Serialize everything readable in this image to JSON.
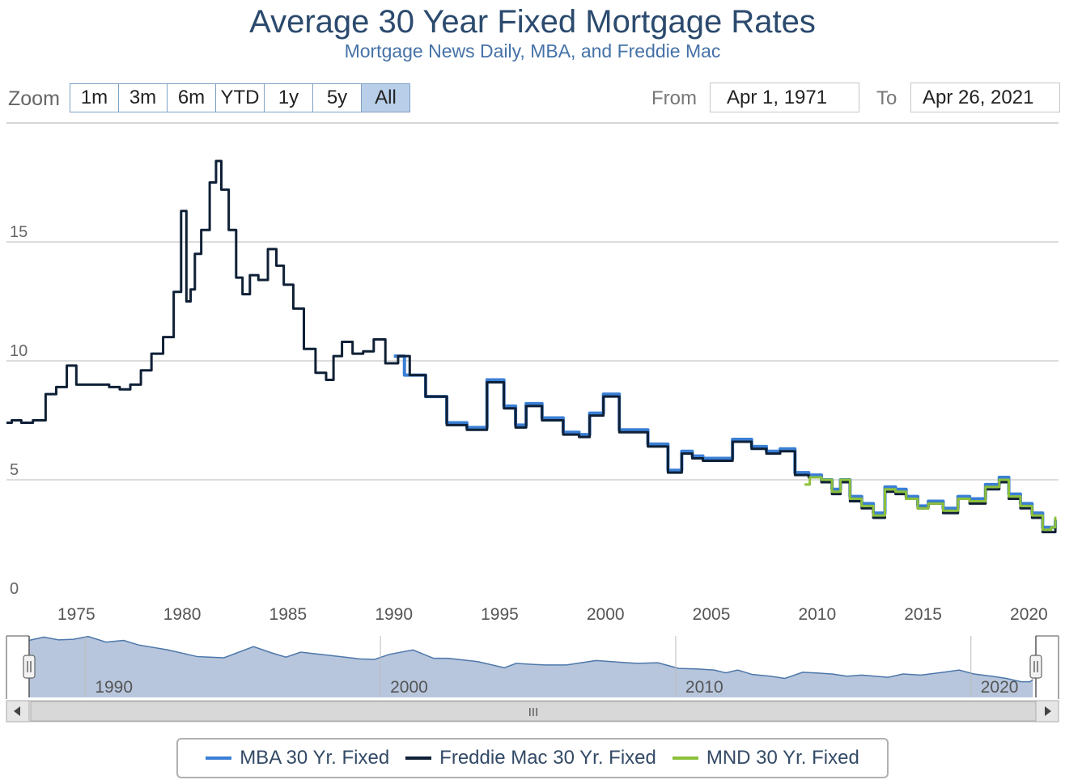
{
  "header": {
    "title": "Average 30 Year Fixed Mortgage Rates",
    "subtitle": "Mortgage News Daily, MBA, and Freddie Mac"
  },
  "range_selector": {
    "zoom_label": "Zoom",
    "buttons": [
      "1m",
      "3m",
      "6m",
      "YTD",
      "1y",
      "5y",
      "All"
    ],
    "active": "All",
    "from_label": "From",
    "from_value": "Apr 1, 1971",
    "to_label": "To",
    "to_value": "Apr 26, 2021"
  },
  "navigator": {
    "tick_labels": [
      "1990",
      "2000",
      "2010",
      "2020"
    ],
    "scroll_handle_glyph": "III"
  },
  "colors": {
    "mba": "#3a7fd5",
    "freddie": "#0f2036",
    "mnd": "#8dc03c",
    "grid": "#c8c8c8",
    "navigator_fill": "#b7c6dc",
    "navigator_line": "#4d77aa"
  },
  "chart_data": {
    "type": "line",
    "title": "Average 30 Year Fixed Mortgage Rates",
    "subtitle": "Mortgage News Daily, MBA, and Freddie Mac",
    "xlim": [
      1971.7,
      2021.4
    ],
    "ylim": [
      0,
      20
    ],
    "y_ticks": [
      0,
      5,
      10,
      15
    ],
    "x_ticks": [
      1975,
      1980,
      1985,
      1990,
      1995,
      2000,
      2005,
      2010,
      2015,
      2020
    ],
    "grid": true,
    "legend_position": "bottom-center",
    "series": [
      {
        "name": "MBA 30 Yr. Fixed",
        "color": "#3a7fd5",
        "x": [
          1990,
          1991,
          1992,
          1993,
          1993.9,
          1994.9,
          1995.5,
          1996,
          1996.5,
          1997.5,
          1998.5,
          1999,
          1999.5,
          2000.3,
          2001,
          2001.5,
          2002.5,
          2003.4,
          2003.8,
          2004.4,
          2004.8,
          2005.5,
          2006.5,
          2007.3,
          2007.9,
          2008.6,
          2009.3,
          2009.9,
          2010.5,
          2010.9,
          2011.3,
          2011.8,
          2012.4,
          2012.9,
          2013.5,
          2013.9,
          2014.5,
          2015,
          2015.5,
          2016.4,
          2016.9,
          2017.5,
          2018.4,
          2018.8,
          2019.3,
          2019.9,
          2020.4,
          2020.9,
          2021.2,
          2021.3
        ],
        "y": [
          10.2,
          9.4,
          8.5,
          7.4,
          7.2,
          9.2,
          8.1,
          7.3,
          8.2,
          7.6,
          7.0,
          6.9,
          7.8,
          8.6,
          7.1,
          7.1,
          6.5,
          5.4,
          6.2,
          6.0,
          5.9,
          5.9,
          6.7,
          6.4,
          6.2,
          6.3,
          5.3,
          5.2,
          5.0,
          4.6,
          5.0,
          4.3,
          4.0,
          3.6,
          4.7,
          4.6,
          4.3,
          3.9,
          4.1,
          3.8,
          4.3,
          4.2,
          4.8,
          5.1,
          4.4,
          4.0,
          3.6,
          3.0,
          3.0,
          3.3
        ]
      },
      {
        "name": "Freddie Mac 30 Yr. Fixed",
        "color": "#0f2036",
        "x": [
          1971.7,
          1972.2,
          1972.6,
          1973.3,
          1973.8,
          1974.3,
          1974.8,
          1975.2,
          1975.6,
          1976.3,
          1976.8,
          1977.3,
          1977.8,
          1978.3,
          1978.8,
          1979.4,
          1979.8,
          1980.1,
          1980.3,
          1980.5,
          1980.7,
          1981.1,
          1981.5,
          1981.7,
          1982.0,
          1982.4,
          1982.7,
          1983.0,
          1983.4,
          1983.8,
          1984.3,
          1984.6,
          1985.0,
          1985.5,
          1986.0,
          1986.6,
          1987.0,
          1987.3,
          1987.8,
          1988.3,
          1988.8,
          1989.3,
          1989.9,
          1990.5,
          1991,
          1992,
          1993,
          1993.9,
          1994.9,
          1995.5,
          1996,
          1996.5,
          1997.5,
          1998.5,
          1999,
          1999.5,
          2000.3,
          2001,
          2001.5,
          2002.5,
          2003.4,
          2003.8,
          2004.4,
          2004.8,
          2005.5,
          2006.5,
          2007.3,
          2007.9,
          2008.6,
          2009.3,
          2009.9,
          2010.5,
          2010.9,
          2011.3,
          2011.8,
          2012.4,
          2012.9,
          2013.5,
          2013.9,
          2014.5,
          2015,
          2015.5,
          2016.4,
          2016.9,
          2017.5,
          2018.4,
          2018.8,
          2019.3,
          2019.9,
          2020.4,
          2020.9,
          2021.2,
          2021.3
        ],
        "y": [
          7.4,
          7.5,
          7.4,
          7.5,
          8.6,
          8.9,
          9.8,
          9.0,
          9.0,
          9.0,
          8.9,
          8.8,
          9.0,
          9.6,
          10.3,
          11.0,
          12.9,
          16.3,
          12.5,
          13.0,
          14.5,
          15.5,
          17.5,
          18.4,
          17.2,
          15.5,
          13.5,
          12.8,
          13.6,
          13.4,
          14.7,
          14.0,
          13.2,
          12.2,
          10.5,
          9.5,
          9.2,
          10.2,
          10.8,
          10.3,
          10.4,
          10.9,
          9.9,
          10.2,
          9.4,
          8.5,
          7.3,
          7.1,
          9.1,
          8.0,
          7.2,
          8.1,
          7.5,
          6.9,
          6.8,
          7.7,
          8.5,
          7.0,
          7.0,
          6.4,
          5.3,
          6.1,
          5.9,
          5.8,
          5.8,
          6.6,
          6.3,
          6.1,
          6.2,
          5.2,
          5.1,
          4.9,
          4.4,
          4.9,
          4.1,
          3.8,
          3.4,
          4.5,
          4.4,
          4.2,
          3.8,
          4.0,
          3.6,
          4.2,
          4.0,
          4.6,
          4.9,
          4.2,
          3.8,
          3.4,
          2.8,
          2.8,
          3.2
        ]
      },
      {
        "name": "MND 30 Yr. Fixed",
        "color": "#8dc03c",
        "x": [
          2009.4,
          2009.9,
          2010.5,
          2010.9,
          2011.3,
          2011.8,
          2012.4,
          2012.9,
          2013.5,
          2013.9,
          2014.5,
          2015,
          2015.5,
          2016.4,
          2016.9,
          2017.5,
          2018.4,
          2018.8,
          2019.3,
          2019.9,
          2020.4,
          2020.9,
          2021.2,
          2021.3
        ],
        "y": [
          4.8,
          5.1,
          5.0,
          4.5,
          5.0,
          4.2,
          3.9,
          3.5,
          4.6,
          4.5,
          4.2,
          3.8,
          4.0,
          3.7,
          4.2,
          4.1,
          4.7,
          5.0,
          4.3,
          3.9,
          3.5,
          2.9,
          3.0,
          3.4
        ]
      }
    ]
  }
}
